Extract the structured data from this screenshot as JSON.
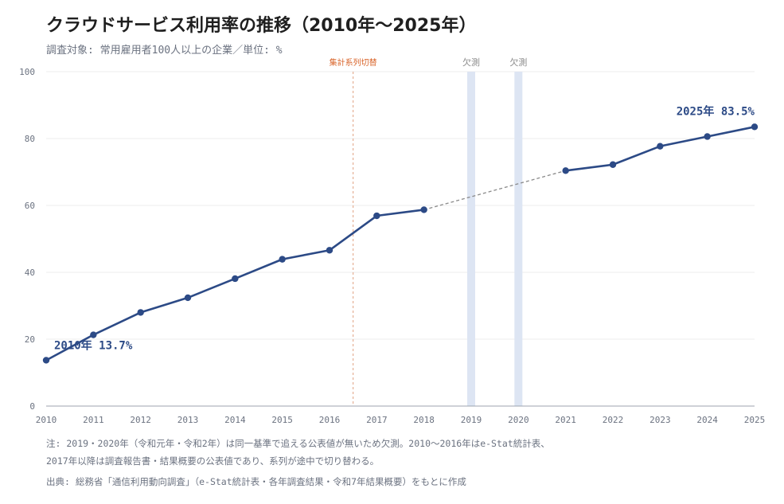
{
  "title": "クラウドサービス利用率の推移（2010年〜2025年）",
  "subtitle": "調査対象: 常用雇用者100人以上の企業／単位: %",
  "notes": [
    "注: 2019・2020年（令和元年・令和2年）は同一基準で追える公表値が無いため欠測。2010〜2016年はe-Stat統計表、",
    "2017年以降は調査報告書・結果概要の公表値であり、系列が途中で切り替わる。"
  ],
  "source": "出典: 総務省「通信利用動向調査」（e-Stat統計表・各年調査結果・令和7年結果概要）をもとに作成",
  "colors": {
    "line": "#2c4a86",
    "gap_line": "#8a8a8a",
    "switch_line": "#e0a080",
    "switch_label": "#d9652b",
    "missing_band": "#dde5f3",
    "missing_label": "#8a8a8a",
    "grid": "#ececec"
  },
  "chart_data": {
    "type": "line",
    "x": [
      2010,
      2011,
      2012,
      2013,
      2014,
      2015,
      2016,
      2017,
      2018,
      2021,
      2022,
      2023,
      2024,
      2025
    ],
    "values": [
      13.7,
      21.3,
      28.0,
      32.4,
      38.1,
      43.9,
      46.6,
      56.9,
      58.7,
      70.4,
      72.2,
      77.7,
      80.6,
      83.5
    ],
    "xticks": [
      "2010",
      "2011",
      "2012",
      "2013",
      "2014",
      "2015",
      "2016",
      "2017",
      "2018",
      "2019",
      "2020",
      "2021",
      "2022",
      "2023",
      "2024",
      "2025"
    ],
    "yticks": [
      "0",
      "20",
      "40",
      "60",
      "80",
      "100"
    ],
    "ylim": [
      0,
      100
    ],
    "xlim": [
      2010,
      2025
    ],
    "grid": true,
    "missing_years": [
      2019,
      2020
    ],
    "missing_label": "欠測",
    "series_switch_x": 2016.5,
    "series_switch_label": "集計系列切替",
    "gap_connector": {
      "from": [
        2018,
        58.7
      ],
      "to": [
        2021,
        70.4
      ]
    },
    "annotations": [
      {
        "text": "2010年 13.7%",
        "x": 2010,
        "y": 13.7
      },
      {
        "text": "2025年 83.5%",
        "x": 2025,
        "y": 83.5
      }
    ]
  }
}
